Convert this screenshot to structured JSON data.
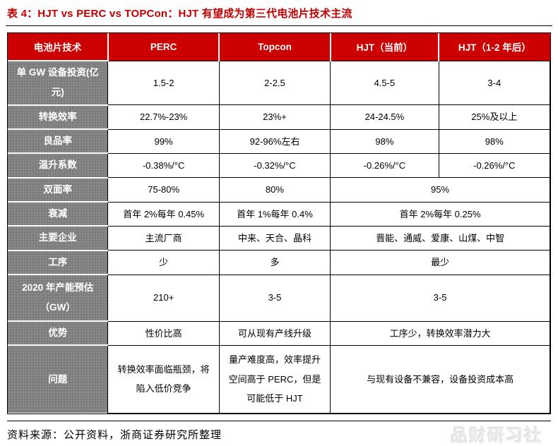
{
  "title": "表 4：HJT vs PERC vs TOPCon：HJT 有望成为第三代电池片技术主流",
  "colors": {
    "title_red": "#c00000",
    "header_red": "#cc0000",
    "row_header_gray": "#7d7d7d",
    "watermark_gray": "#e9e9e9"
  },
  "table": {
    "columns": [
      "电池片技术",
      "PERC",
      "Topcon",
      "HJT（当前）",
      "HJT（1-2 年后）"
    ],
    "rows": [
      {
        "header": "单 GW 设备投资(亿元)",
        "cells": [
          {
            "text": "1.5-2"
          },
          {
            "text": "2-2.5"
          },
          {
            "text": "4.5-5"
          },
          {
            "text": "3-4"
          }
        ]
      },
      {
        "header": "转换效率",
        "cells": [
          {
            "text": "22.7%-23%"
          },
          {
            "text": "23%+"
          },
          {
            "text": "24-24.5%"
          },
          {
            "text": "25%及以上"
          }
        ]
      },
      {
        "header": "良品率",
        "cells": [
          {
            "text": "99%"
          },
          {
            "text": "92-96%左右"
          },
          {
            "text": "98%"
          },
          {
            "text": "98%"
          }
        ]
      },
      {
        "header": "温升系数",
        "cells": [
          {
            "text": "-0.38%/°C"
          },
          {
            "text": "-0.32%/°C"
          },
          {
            "text": "-0.26%/°C"
          },
          {
            "text": "-0.26%/°C"
          }
        ]
      },
      {
        "header": "双面率",
        "cells": [
          {
            "text": "75-80%"
          },
          {
            "text": "80%"
          },
          {
            "text": "95%",
            "colspan": 2
          }
        ]
      },
      {
        "header": "衰减",
        "cells": [
          {
            "text": "首年 2%每年 0.45%"
          },
          {
            "text": "首年 1%每年 0.4%"
          },
          {
            "text": "首年 2%每年 0.25%",
            "colspan": 2
          }
        ]
      },
      {
        "header": "主要企业",
        "cells": [
          {
            "text": "主流厂商"
          },
          {
            "text": "中来、天合、晶科"
          },
          {
            "text": "晋能、通威、爱康、山煤、中智",
            "colspan": 2
          }
        ]
      },
      {
        "header": "工序",
        "cells": [
          {
            "text": "少"
          },
          {
            "text": "多"
          },
          {
            "text": "最少",
            "colspan": 2
          }
        ]
      },
      {
        "header": "2020 年产能预估（GW）",
        "cells": [
          {
            "text": "210+"
          },
          {
            "text": "3-5"
          },
          {
            "text": "3-5",
            "colspan": 2
          }
        ]
      },
      {
        "header": "优势",
        "cells": [
          {
            "text": "性价比高"
          },
          {
            "text": "可从现有产线升级"
          },
          {
            "text": "工序少，转换效率潜力大",
            "colspan": 2
          }
        ]
      },
      {
        "header": "问题",
        "cells": [
          {
            "text": "转换效率面临瓶颈，将陷入低价竞争"
          },
          {
            "text": "量产难度高，效率提升空间高于 PERC，但是可能低于 HJT"
          },
          {
            "text": "与现有设备不兼容，设备投资成本高",
            "colspan": 2
          }
        ]
      }
    ]
  },
  "footer": {
    "source": "资料来源：公开资料，浙商证券研究所整理"
  },
  "watermark": "品财研习社"
}
